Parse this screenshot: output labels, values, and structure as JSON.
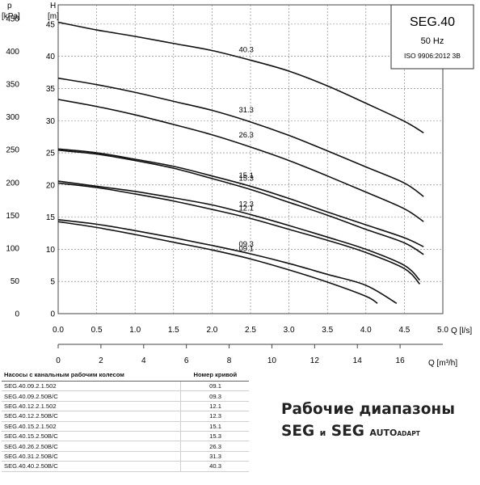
{
  "chart_data": {
    "type": "line",
    "title": "SEG.40",
    "subtitle_lines": [
      "50 Hz",
      "ISO 9906:2012 3B"
    ],
    "y_left_label_lines": [
      "p",
      "[kPa]"
    ],
    "y_right_label_lines": [
      "H",
      "[m]"
    ],
    "xlabel": "Q [l/s]",
    "x2label": "Q [m³/h]",
    "xlim": [
      0,
      5.0
    ],
    "x_ticks": [
      "0.0",
      "0.5",
      "1.0",
      "1.5",
      "2.0",
      "2.5",
      "3.0",
      "3.5",
      "4.0",
      "4.5",
      "5.0"
    ],
    "x2_ticks": [
      "0",
      "2",
      "4",
      "6",
      "8",
      "10",
      "12",
      "14",
      "16"
    ],
    "ylim_m": [
      0,
      48
    ],
    "y_m_ticks": [
      "0",
      "5",
      "10",
      "15",
      "20",
      "25",
      "30",
      "35",
      "40",
      "45"
    ],
    "ylim_kpa": [
      0,
      470.9
    ],
    "y_kpa_ticks": [
      "0",
      "50",
      "100",
      "150",
      "200",
      "250",
      "300",
      "350",
      "400",
      "450"
    ],
    "grid": true,
    "series": [
      {
        "name": "40.3",
        "x": [
          0,
          0.5,
          1.0,
          1.5,
          2.0,
          2.5,
          3.0,
          3.5,
          4.0,
          4.5,
          4.75
        ],
        "y": [
          45.3,
          44.1,
          43.1,
          42.0,
          40.9,
          39.4,
          37.7,
          35.4,
          32.7,
          29.9,
          28.1
        ]
      },
      {
        "name": "31.3",
        "x": [
          0,
          0.5,
          1.0,
          1.5,
          2.0,
          2.5,
          3.0,
          3.5,
          4.0,
          4.5,
          4.75
        ],
        "y": [
          36.6,
          35.6,
          34.4,
          33.0,
          31.6,
          29.8,
          27.7,
          25.3,
          22.8,
          20.3,
          18.2
        ]
      },
      {
        "name": "26.3",
        "x": [
          0,
          0.5,
          1.0,
          1.5,
          2.0,
          2.5,
          3.0,
          3.5,
          4.0,
          4.5,
          4.75
        ],
        "y": [
          33.3,
          32.2,
          30.9,
          29.4,
          27.8,
          25.9,
          23.8,
          21.4,
          18.9,
          16.3,
          14.3
        ]
      },
      {
        "name": "15.1",
        "x": [
          0,
          0.5,
          1.0,
          1.5,
          2.0,
          2.5,
          3.0,
          3.5,
          4.0,
          4.5,
          4.75
        ],
        "y": [
          25.6,
          25.0,
          24.0,
          22.9,
          21.4,
          19.8,
          17.9,
          15.8,
          13.8,
          11.8,
          10.4
        ]
      },
      {
        "name": "15.3",
        "x": [
          0,
          0.5,
          1.0,
          1.5,
          2.0,
          2.5,
          3.0,
          3.5,
          4.0,
          4.5,
          4.75
        ],
        "y": [
          25.4,
          24.8,
          23.8,
          22.6,
          21.0,
          19.3,
          17.3,
          15.3,
          13.1,
          11.0,
          9.2
        ]
      },
      {
        "name": "12.3",
        "x": [
          0,
          0.5,
          1.0,
          1.5,
          2.0,
          2.5,
          3.0,
          3.5,
          4.0,
          4.5,
          4.7
        ],
        "y": [
          20.6,
          19.8,
          19.0,
          18.0,
          16.9,
          15.4,
          13.7,
          11.9,
          10.0,
          7.5,
          5.2
        ]
      },
      {
        "name": "12.1",
        "x": [
          0,
          0.5,
          1.0,
          1.5,
          2.0,
          2.5,
          3.0,
          3.5,
          4.0,
          4.5,
          4.7
        ],
        "y": [
          20.3,
          19.6,
          18.6,
          17.5,
          16.2,
          14.8,
          13.1,
          11.4,
          9.5,
          7.0,
          4.6
        ]
      },
      {
        "name": "09.3",
        "x": [
          0,
          0.5,
          1.0,
          1.5,
          2.0,
          2.5,
          3.0,
          3.5,
          4.0,
          4.4
        ],
        "y": [
          14.6,
          13.9,
          12.9,
          11.8,
          10.6,
          9.3,
          7.8,
          6.1,
          4.4,
          1.6
        ]
      },
      {
        "name": "09.1",
        "x": [
          0,
          0.5,
          1.0,
          1.5,
          2.0,
          2.5,
          3.0,
          3.5,
          4.0,
          4.15
        ],
        "y": [
          14.3,
          13.4,
          12.3,
          11.1,
          9.9,
          8.5,
          6.8,
          4.9,
          2.7,
          1.6
        ]
      }
    ],
    "series_labels": [
      {
        "series": "40.3",
        "at_x": 2.2
      },
      {
        "series": "31.3",
        "at_x": 2.2
      },
      {
        "series": "26.3",
        "at_x": 2.2
      },
      {
        "series": "15.1",
        "at_x": 2.2
      },
      {
        "series": "15.3",
        "at_x": 2.2
      },
      {
        "series": "12.3",
        "at_x": 2.2
      },
      {
        "series": "12.1",
        "at_x": 2.2
      },
      {
        "series": "09.3",
        "at_x": 2.2
      },
      {
        "series": "09.1",
        "at_x": 2.2
      }
    ]
  },
  "table": {
    "headers": [
      "Насосы с канальным рабочим колесом",
      "Номер кривой"
    ],
    "rows": [
      [
        "SEG.40.09.2.1.502",
        "09.1"
      ],
      [
        "SEG.40.09.2.50B/C",
        "09.3"
      ],
      [
        "SEG.40.12.2.1.502",
        "12.1"
      ],
      [
        "SEG.40.12.2.50B/C",
        "12.3"
      ],
      [
        "SEG.40.15.2.1.502",
        "15.1"
      ],
      [
        "SEG.40.15.2.50B/C",
        "15.3"
      ],
      [
        "SEG.40.26.2.50B/C",
        "26.3"
      ],
      [
        "SEG.40.31.2.50B/C",
        "31.3"
      ],
      [
        "SEG.40.40.2.50B/C",
        "40.3"
      ]
    ]
  },
  "caption": {
    "line1": "Рабочие диапазоны",
    "line2_a": "SEG",
    "line2_b": "и",
    "line2_c": "SEG",
    "line2_d": "AUTO",
    "line2_e": "ADAPT"
  }
}
